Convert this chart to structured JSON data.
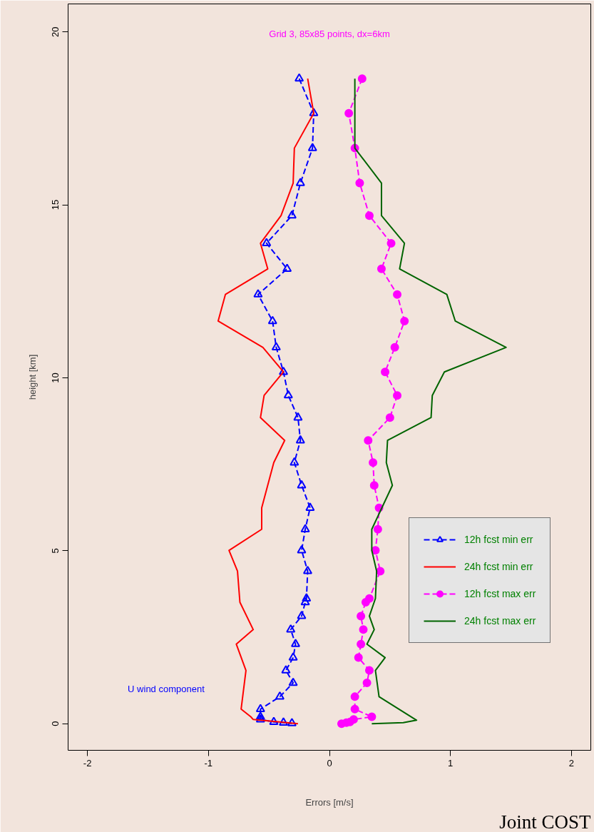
{
  "chart_data": {
    "type": "line",
    "xlabel": "Errors [m/s]",
    "ylabel": "height [km]",
    "xlim": [
      -2.16,
      2.16
    ],
    "ylim": [
      -0.77,
      20.81
    ],
    "xticks": [
      -2,
      -1,
      0,
      1,
      2
    ],
    "yticks": [
      0,
      5,
      10,
      15,
      20
    ],
    "grid": false,
    "legend": "right",
    "annotations": [
      "Grid 3, 85x85 points, dx=6km",
      "U wind component",
      "Joint COST"
    ],
    "series": [
      {
        "name": "12h fcst min err",
        "color": "#0000ff",
        "marker": "triangle",
        "line_style": "dashed",
        "x": [
          -0.25,
          -0.13,
          -0.14,
          -0.24,
          -0.31,
          -0.52,
          -0.35,
          -0.59,
          -0.47,
          -0.44,
          -0.38,
          -0.34,
          -0.26,
          -0.24,
          -0.29,
          -0.23,
          -0.16,
          -0.2,
          -0.23,
          -0.18,
          -0.19,
          -0.2,
          -0.23,
          -0.32,
          -0.28,
          -0.3,
          -0.36,
          -0.3,
          -0.41,
          -0.57,
          -0.57,
          -0.57,
          -0.46,
          -0.38,
          -0.31
        ],
        "values": [
          18.65,
          17.65,
          16.64,
          15.63,
          14.69,
          13.89,
          13.15,
          12.41,
          11.64,
          10.88,
          10.17,
          9.49,
          8.85,
          8.19,
          7.55,
          6.89,
          6.24,
          5.62,
          5.01,
          4.41,
          3.62,
          3.51,
          3.11,
          2.72,
          2.3,
          1.91,
          1.54,
          1.18,
          0.78,
          0.42,
          0.2,
          0.12,
          0.05,
          0.03,
          0.01
        ]
      },
      {
        "name": "24h fcst min err",
        "color": "#ff0000",
        "marker": "none",
        "line_style": "solid",
        "x": [
          -0.18,
          -0.13,
          -0.29,
          -0.3,
          -0.4,
          -0.57,
          -0.51,
          -0.86,
          -0.92,
          -0.55,
          -0.38,
          -0.54,
          -0.57,
          -0.37,
          -0.46,
          -0.56,
          -0.56,
          -0.83,
          -0.76,
          -0.74,
          -0.63,
          -0.77,
          -0.69,
          -0.73,
          -0.65,
          -0.63,
          -0.26
        ],
        "values": [
          18.65,
          17.65,
          16.64,
          15.63,
          14.69,
          13.89,
          13.15,
          12.41,
          11.64,
          10.88,
          10.17,
          9.49,
          8.85,
          8.19,
          7.55,
          6.24,
          5.62,
          5.01,
          4.41,
          3.51,
          2.72,
          2.3,
          1.54,
          0.42,
          0.2,
          0.12,
          0.0
        ]
      },
      {
        "name": "12h fcst max err",
        "color": "#ff00ff",
        "marker": "circle",
        "line_style": "dashed",
        "x": [
          0.27,
          0.16,
          0.21,
          0.25,
          0.33,
          0.51,
          0.43,
          0.56,
          0.62,
          0.54,
          0.46,
          0.56,
          0.5,
          0.32,
          0.36,
          0.37,
          0.41,
          0.4,
          0.38,
          0.42,
          0.33,
          0.3,
          0.26,
          0.28,
          0.26,
          0.24,
          0.33,
          0.31,
          0.21,
          0.21,
          0.35,
          0.2,
          0.17,
          0.14,
          0.1
        ],
        "values": [
          18.65,
          17.65,
          16.64,
          15.63,
          14.69,
          13.89,
          13.15,
          12.41,
          11.64,
          10.88,
          10.17,
          9.49,
          8.85,
          8.19,
          7.55,
          6.89,
          6.24,
          5.62,
          5.01,
          4.41,
          3.62,
          3.51,
          3.11,
          2.72,
          2.3,
          1.91,
          1.54,
          1.18,
          0.78,
          0.42,
          0.2,
          0.12,
          0.05,
          0.03,
          0.0
        ]
      },
      {
        "name": "24h fcst max err",
        "color": "#006400",
        "marker": "none",
        "line_style": "solid",
        "x": [
          0.21,
          0.21,
          0.43,
          0.43,
          0.62,
          0.58,
          0.97,
          1.04,
          1.46,
          0.95,
          0.85,
          0.84,
          0.48,
          0.47,
          0.52,
          0.35,
          0.35,
          0.39,
          0.38,
          0.33,
          0.37,
          0.31,
          0.46,
          0.38,
          0.41,
          0.72,
          0.61,
          0.35
        ],
        "values": [
          18.65,
          16.64,
          15.63,
          14.69,
          13.89,
          13.15,
          12.41,
          11.64,
          10.88,
          10.17,
          9.49,
          8.85,
          8.19,
          7.55,
          6.89,
          5.62,
          5.01,
          4.41,
          3.62,
          3.11,
          2.72,
          2.3,
          1.91,
          1.54,
          0.78,
          0.1,
          0.03,
          0.0
        ]
      }
    ]
  }
}
